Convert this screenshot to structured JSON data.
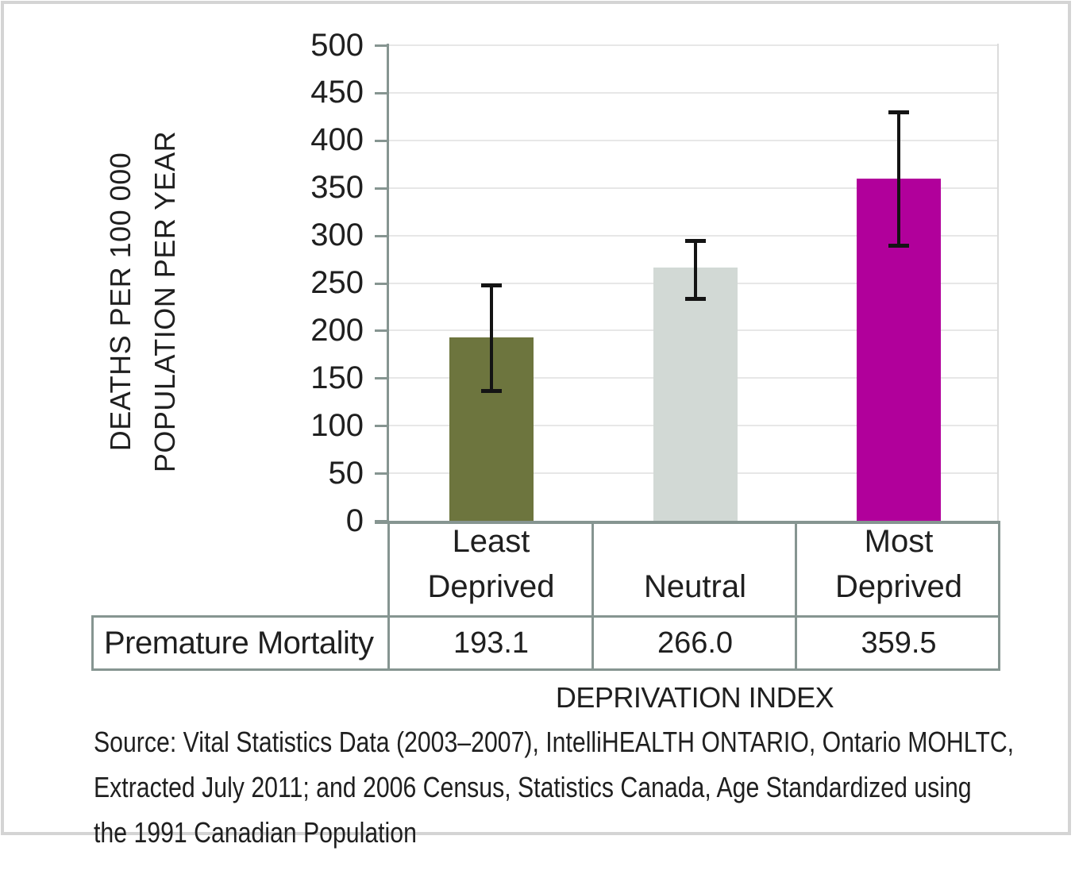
{
  "colors": {
    "axis": "#869591",
    "table_border": "#869591",
    "grid": "#e7e7e7",
    "plot_right_edge": "#dcdcdc",
    "error_bar": "#141414",
    "text": "#1f1f1f",
    "frame_border": "#d4d4d4",
    "background": "#ffffff"
  },
  "chart_data": {
    "type": "bar",
    "title": "",
    "categories": [
      "Least Deprived",
      "Neutral",
      "Most Deprived"
    ],
    "series": [
      {
        "name": "Premature Mortality",
        "values": [
          193.1,
          266.0,
          359.5
        ],
        "bar_colors": [
          "#6d753e",
          "#d2d9d5",
          "#b1009b"
        ],
        "error_bars": [
          {
            "low": 136,
            "high": 248
          },
          {
            "low": 233,
            "high": 295
          },
          {
            "low": 289,
            "high": 430
          }
        ]
      }
    ],
    "xlabel": "DEPRIVATION INDEX",
    "ylabel_lines": [
      "DEATHS PER 100 000",
      "POPULATION PER YEAR"
    ],
    "ylim": [
      0,
      500
    ],
    "ytick_step": 50,
    "grid": true,
    "legend_position": "none"
  },
  "table": {
    "row_label": "Premature Mortality",
    "columns": [
      "Least Deprived",
      "Neutral",
      "Most Deprived"
    ],
    "values": [
      "193.1",
      "266.0",
      "359.5"
    ]
  },
  "source_note": {
    "lines": [
      "Source: Vital Statistics Data (2003–2007), IntelliHEALTH ONTARIO, Ontario MOHLTC,",
      "Extracted July 2011; and 2006 Census, Statistics Canada, Age Standardized using",
      "the 1991 Canadian Population"
    ]
  }
}
